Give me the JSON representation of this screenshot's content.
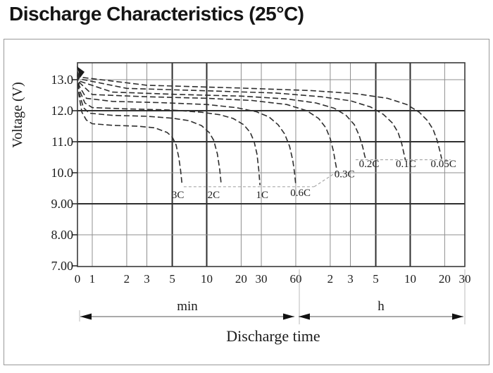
{
  "page_title": "Discharge Characteristics (25°C)",
  "chart_data": {
    "type": "line",
    "title": "Discharge Characteristics (25°C)",
    "xlabel": "Discharge time",
    "ylabel": "Voltage (V)",
    "grid": true,
    "y_ticks": [
      {
        "label": "13.0",
        "v": 13
      },
      {
        "label": "12.0",
        "v": 12
      },
      {
        "label": "11.0",
        "v": 11
      },
      {
        "label": "10.0",
        "v": 10
      },
      {
        "label": "9.00",
        "v": 9
      },
      {
        "label": "8.00",
        "v": 8
      },
      {
        "label": "7.00",
        "v": 7
      }
    ],
    "y_range": [
      7,
      13.5
    ],
    "x_ticks_minutes": [
      {
        "label": "0",
        "t": 0
      },
      {
        "label": "1",
        "t": 1
      },
      {
        "label": "2",
        "t": 2
      },
      {
        "label": "3",
        "t": 3
      },
      {
        "label": "5",
        "t": 5
      },
      {
        "label": "10",
        "t": 10
      },
      {
        "label": "20",
        "t": 20
      },
      {
        "label": "30",
        "t": 30
      },
      {
        "label": "60",
        "t": 60
      }
    ],
    "x_ticks_hours": [
      {
        "label": "2",
        "t": 120
      },
      {
        "label": "3",
        "t": 180
      },
      {
        "label": "5",
        "t": 300
      },
      {
        "label": "10",
        "t": 600
      },
      {
        "label": "20",
        "t": 1200
      },
      {
        "label": "30",
        "t": 1800
      }
    ],
    "x_unit_segments": [
      {
        "label": "min",
        "from_t": 0,
        "to_t": 60
      },
      {
        "label": "h",
        "from_t": 60,
        "to_t": 1800
      }
    ],
    "series": [
      {
        "name": "3C",
        "label": {
          "text": "3C",
          "t": 5.6,
          "v": 9.18
        },
        "points": [
          [
            0,
            13.15
          ],
          [
            0.1,
            12.5
          ],
          [
            0.3,
            11.95
          ],
          [
            0.6,
            11.7
          ],
          [
            1,
            11.58
          ],
          [
            1.5,
            11.53
          ],
          [
            2.5,
            11.5
          ],
          [
            3.5,
            11.45
          ],
          [
            4.5,
            11.3
          ],
          [
            5,
            11.15
          ],
          [
            5.4,
            10.9
          ],
          [
            5.7,
            10.5
          ],
          [
            5.9,
            10.1
          ],
          [
            6.1,
            9.6
          ]
        ]
      },
      {
        "name": "2C",
        "label": {
          "text": "2C",
          "t": 11.5,
          "v": 9.18
        },
        "points": [
          [
            0,
            13.15
          ],
          [
            0.1,
            12.6
          ],
          [
            0.4,
            12.1
          ],
          [
            0.8,
            11.92
          ],
          [
            1.5,
            11.85
          ],
          [
            3,
            11.82
          ],
          [
            5,
            11.76
          ],
          [
            7,
            11.68
          ],
          [
            9,
            11.52
          ],
          [
            10.5,
            11.3
          ],
          [
            11.5,
            11.05
          ],
          [
            12.4,
            10.6
          ],
          [
            13,
            10.1
          ],
          [
            13.4,
            9.6
          ]
        ]
      },
      {
        "name": "1C",
        "label": {
          "text": "1C",
          "t": 30.5,
          "v": 9.18
        },
        "points": [
          [
            0,
            13.15
          ],
          [
            0.1,
            12.7
          ],
          [
            0.5,
            12.25
          ],
          [
            1,
            12.1
          ],
          [
            2,
            12.06
          ],
          [
            5,
            12.02
          ],
          [
            9,
            11.95
          ],
          [
            13,
            11.87
          ],
          [
            17,
            11.75
          ],
          [
            21,
            11.55
          ],
          [
            24,
            11.3
          ],
          [
            26,
            11.0
          ],
          [
            27.5,
            10.6
          ],
          [
            28.5,
            10.1
          ],
          [
            29.2,
            9.6
          ]
        ]
      },
      {
        "name": "0.6C",
        "label": {
          "text": "0.6C",
          "t": 66,
          "v": 9.25
        },
        "points": [
          [
            0,
            13.18
          ],
          [
            0.12,
            12.8
          ],
          [
            0.6,
            12.4
          ],
          [
            1.5,
            12.3
          ],
          [
            4,
            12.26
          ],
          [
            10,
            12.2
          ],
          [
            18,
            12.1
          ],
          [
            27,
            11.97
          ],
          [
            35,
            11.8
          ],
          [
            42,
            11.55
          ],
          [
            48,
            11.25
          ],
          [
            53,
            10.85
          ],
          [
            56.5,
            10.4
          ],
          [
            58.5,
            10.0
          ],
          [
            60,
            9.6
          ]
        ]
      },
      {
        "name": "0.3C",
        "label": {
          "text": "0.3C",
          "t": 160,
          "v": 9.85
        },
        "points": [
          [
            0,
            13.2
          ],
          [
            0.15,
            12.9
          ],
          [
            1,
            12.52
          ],
          [
            3,
            12.45
          ],
          [
            10,
            12.4
          ],
          [
            25,
            12.33
          ],
          [
            50,
            12.2
          ],
          [
            75,
            12.0
          ],
          [
            95,
            11.75
          ],
          [
            110,
            11.45
          ],
          [
            120,
            11.1
          ],
          [
            128,
            10.7
          ],
          [
            133,
            10.35
          ],
          [
            136.5,
            10.12
          ]
        ]
      },
      {
        "name": "0.2C",
        "label": {
          "text": "0.2C",
          "t": 262,
          "v": 10.18
        },
        "points": [
          [
            0,
            13.2
          ],
          [
            0.15,
            12.95
          ],
          [
            1.5,
            12.6
          ],
          [
            6,
            12.52
          ],
          [
            20,
            12.47
          ],
          [
            50,
            12.38
          ],
          [
            90,
            12.25
          ],
          [
            130,
            12.08
          ],
          [
            165,
            11.85
          ],
          [
            195,
            11.55
          ],
          [
            215,
            11.2
          ],
          [
            230,
            10.85
          ],
          [
            240,
            10.55
          ],
          [
            247,
            10.4
          ]
        ]
      },
      {
        "name": "0.1C",
        "label": {
          "text": "0.1C",
          "t": 550,
          "v": 10.18
        },
        "points": [
          [
            0,
            13.22
          ],
          [
            0.2,
            13.02
          ],
          [
            2,
            12.72
          ],
          [
            10,
            12.64
          ],
          [
            40,
            12.57
          ],
          [
            100,
            12.45
          ],
          [
            180,
            12.32
          ],
          [
            270,
            12.12
          ],
          [
            350,
            11.88
          ],
          [
            420,
            11.6
          ],
          [
            470,
            11.3
          ],
          [
            505,
            10.95
          ],
          [
            530,
            10.6
          ],
          [
            545,
            10.4
          ]
        ]
      },
      {
        "name": "0.05C",
        "label": {
          "text": "0.05C",
          "t": 1170,
          "v": 10.18
        },
        "points": [
          [
            0,
            13.25
          ],
          [
            0.2,
            13.08
          ],
          [
            3,
            12.82
          ],
          [
            20,
            12.73
          ],
          [
            80,
            12.65
          ],
          [
            200,
            12.55
          ],
          [
            380,
            12.4
          ],
          [
            560,
            12.2
          ],
          [
            720,
            11.95
          ],
          [
            850,
            11.68
          ],
          [
            950,
            11.4
          ],
          [
            1030,
            11.05
          ],
          [
            1090,
            10.7
          ],
          [
            1130,
            10.45
          ]
        ]
      }
    ],
    "cutoff_guides": [
      {
        "kind": "h",
        "v": 9.55,
        "from_t": 6.3,
        "to_t": 87
      },
      {
        "kind": "h",
        "v": 10.42,
        "from_t": 200,
        "to_t": 1350
      },
      {
        "kind": "diag",
        "from": [
          87,
          9.55
        ],
        "to": [
          140,
          10.05
        ]
      }
    ]
  }
}
